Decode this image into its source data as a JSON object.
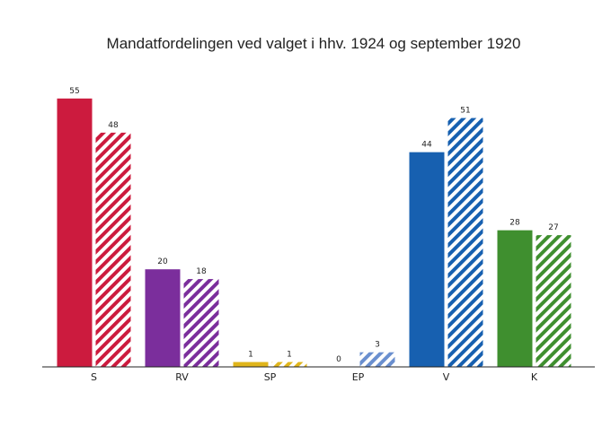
{
  "chart_data": {
    "type": "bar",
    "title": "Mandatfordelingen ved valget i hhv. 1924 og september 1920",
    "xlabel": "",
    "ylabel": "",
    "categories": [
      "S",
      "RV",
      "SP",
      "EP",
      "V",
      "K"
    ],
    "colors": [
      "#cc1b3e",
      "#7b2e9c",
      "#e0b51b",
      "#6a8fcf",
      "#1760b0",
      "#3f8f2f"
    ],
    "series": [
      {
        "style": "solid",
        "values": [
          55,
          20,
          1,
          0,
          44,
          28
        ]
      },
      {
        "style": "hatched",
        "values": [
          48,
          18,
          1,
          3,
          51,
          27
        ]
      }
    ],
    "data_labels": true,
    "grid": false,
    "legend": "none",
    "ylim": [
      0,
      55
    ]
  }
}
